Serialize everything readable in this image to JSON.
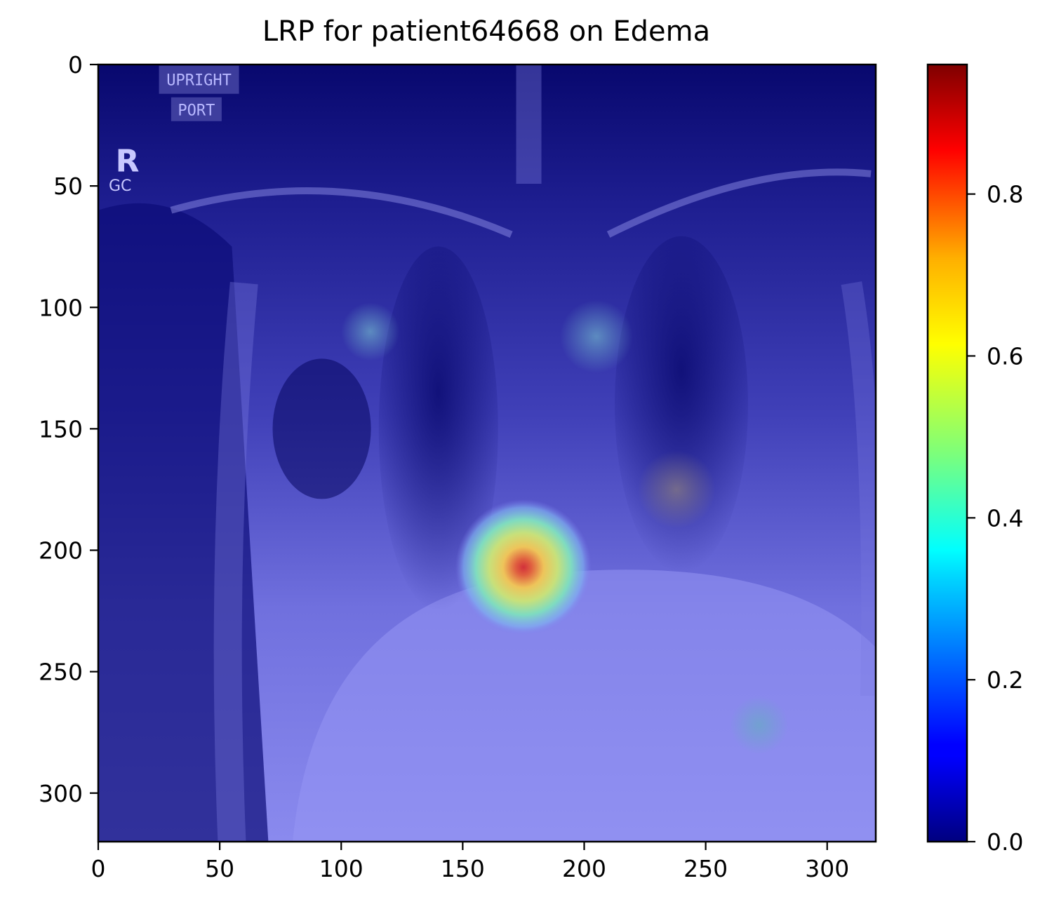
{
  "chart_data": {
    "type": "heatmap",
    "title": "LRP for patient64668 on Edema",
    "image_overlay": "chest-xray",
    "image_labels": [
      "UPRIGHT",
      "PORT",
      "R",
      "GC"
    ],
    "xlim": [
      0,
      320
    ],
    "ylim": [
      320,
      0
    ],
    "xticks": [
      0,
      50,
      100,
      150,
      200,
      250,
      300
    ],
    "yticks": [
      0,
      50,
      100,
      150,
      200,
      250,
      300
    ],
    "hotspots": [
      {
        "x": 175,
        "y": 207,
        "radius": 28,
        "value": 0.95
      },
      {
        "x": 112,
        "y": 110,
        "radius": 12,
        "value": 0.2
      },
      {
        "x": 205,
        "y": 112,
        "radius": 15,
        "value": 0.25
      },
      {
        "x": 238,
        "y": 175,
        "radius": 16,
        "value": 0.3
      },
      {
        "x": 272,
        "y": 272,
        "radius": 12,
        "value": 0.18
      }
    ],
    "colorbar": {
      "colormap": "jet",
      "range": [
        0,
        0.96
      ],
      "ticks": [
        0.0,
        0.2,
        0.4,
        0.6,
        0.8
      ],
      "tick_labels": [
        "0.0",
        "0.2",
        "0.4",
        "0.6",
        "0.8"
      ]
    }
  }
}
